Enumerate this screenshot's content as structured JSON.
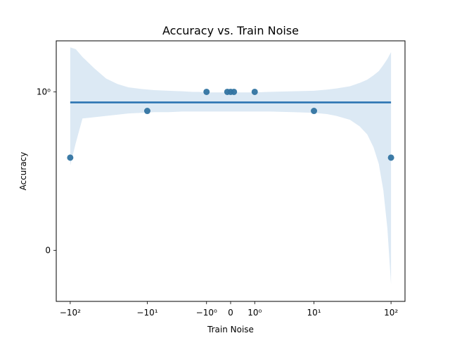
{
  "chart_data": {
    "type": "scatter",
    "title": "Accuracy vs. Train Noise",
    "xlabel": "Train Noise",
    "ylabel": "Accuracy",
    "x_scale": "symlog",
    "y_scale": "symlog",
    "xlim": [
      -150,
      150
    ],
    "ylim": [
      -0.25,
      1.5
    ],
    "x_ticks": [
      {
        "value": -100,
        "label": "−10²"
      },
      {
        "value": -10,
        "label": "−10¹"
      },
      {
        "value": -1,
        "label": "−10⁰"
      },
      {
        "value": 0,
        "label": "0"
      },
      {
        "value": 1,
        "label": "10⁰"
      },
      {
        "value": 10,
        "label": "10¹"
      },
      {
        "value": 100,
        "label": "10²"
      }
    ],
    "y_ticks": [
      {
        "value": 0,
        "label": "0"
      },
      {
        "value": 1,
        "label": "10⁰"
      }
    ],
    "points": [
      {
        "x": -100,
        "y": 0.5
      },
      {
        "x": -10,
        "y": 0.84
      },
      {
        "x": -1,
        "y": 1.0
      },
      {
        "x": -0.1,
        "y": 1.0
      },
      {
        "x": 0,
        "y": 1.0
      },
      {
        "x": 0.1,
        "y": 1.0
      },
      {
        "x": 1,
        "y": 1.0
      },
      {
        "x": 10,
        "y": 0.84
      },
      {
        "x": 100,
        "y": 0.5
      }
    ],
    "regression_line": {
      "x": [
        -100,
        100
      ],
      "y": [
        0.91,
        0.91
      ]
    },
    "confidence_band": {
      "x": [
        -100,
        -85,
        -70,
        -50,
        -35,
        -25,
        -18,
        -12,
        -8,
        -5,
        -3,
        -2,
        -1.5,
        -1,
        -0.5,
        0,
        0.5,
        1,
        2,
        5,
        10,
        15,
        20,
        30,
        40,
        50,
        60,
        70,
        80,
        90,
        100
      ],
      "upper": [
        1.43,
        1.41,
        1.33,
        1.22,
        1.12,
        1.07,
        1.04,
        1.025,
        1.015,
        1.01,
        1.005,
        1.0,
        1.0,
        0.995,
        0.995,
        0.995,
        0.995,
        0.995,
        1.0,
        1.005,
        1.01,
        1.02,
        1.03,
        1.05,
        1.08,
        1.11,
        1.15,
        1.19,
        1.25,
        1.31,
        1.38
      ],
      "lower": [
        0.45,
        0.6,
        0.78,
        0.79,
        0.8,
        0.81,
        0.82,
        0.825,
        0.83,
        0.83,
        0.835,
        0.835,
        0.835,
        0.835,
        0.835,
        0.835,
        0.835,
        0.835,
        0.835,
        0.83,
        0.825,
        0.815,
        0.8,
        0.77,
        0.72,
        0.66,
        0.57,
        0.46,
        0.3,
        0.1,
        -0.16
      ]
    },
    "grid": false,
    "colors": {
      "points": "#3274a1",
      "line": "#2b74b2",
      "band": "#dce9f4"
    }
  }
}
